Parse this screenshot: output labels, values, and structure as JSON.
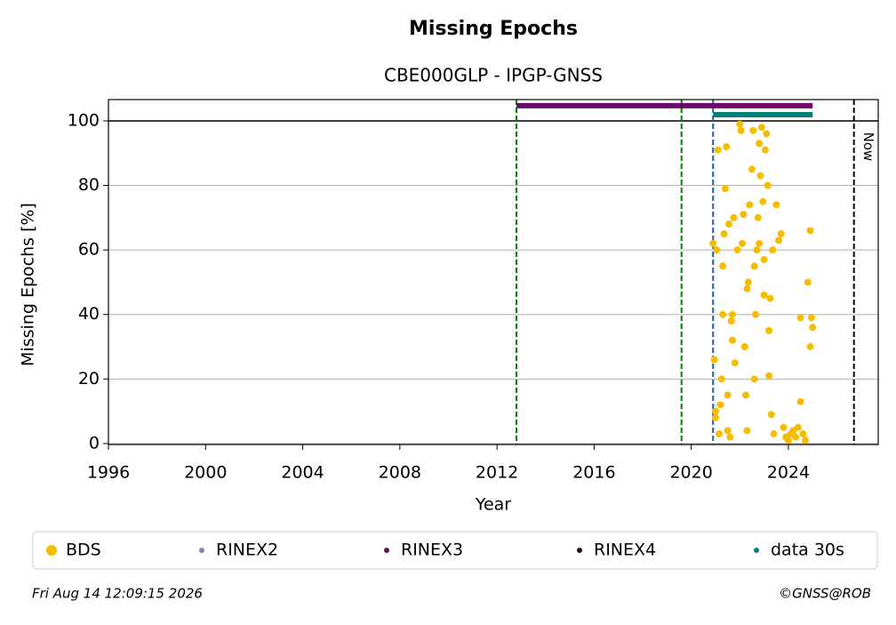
{
  "chart_data": {
    "type": "scatter",
    "title": "Missing Epochs",
    "subtitle": "CBE000GLP - IPGP-GNSS",
    "x_label": "Year",
    "y_label": "Missing Epochs [%]",
    "xlim": [
      1996,
      2027.7
    ],
    "xticks": [
      1996,
      2000,
      2004,
      2008,
      2012,
      2016,
      2020,
      2024
    ],
    "ylim": [
      -0.3,
      106.6
    ],
    "yticks": [
      0,
      20,
      40,
      60,
      80,
      100
    ],
    "grid": true,
    "reference_line": 100,
    "vlines": [
      {
        "x": 2012.8,
        "color": "#008000"
      },
      {
        "x": 2019.6,
        "color": "#008000"
      },
      {
        "x": 2020.9,
        "color": "#1f5fa8"
      },
      {
        "x": 2026.7,
        "color": "#000000"
      }
    ],
    "annotation": "Now",
    "annotation_x": 2026.7,
    "series": [
      {
        "name": "BDS",
        "color": "#f5bd00",
        "marker": "dot",
        "x": [
          2020.9,
          2020.95,
          2021.0,
          2021.05,
          2021.1,
          2021.15,
          2021.2,
          2021.25,
          2021.3,
          2021.35,
          2021.4,
          2021.45,
          2021.5,
          2021.55,
          2021.6,
          2021.65,
          2021.7,
          2021.75,
          2021.8,
          2021.9,
          2022.0,
          2022.05,
          2022.1,
          2022.15,
          2022.2,
          2022.25,
          2022.3,
          2022.35,
          2022.4,
          2022.5,
          2022.55,
          2022.6,
          2022.65,
          2022.7,
          2022.75,
          2022.8,
          2022.85,
          2022.9,
          2022.95,
          2023.0,
          2023.05,
          2023.1,
          2023.15,
          2023.2,
          2023.25,
          2023.3,
          2023.35,
          2023.4,
          2023.5,
          2023.6,
          2023.7,
          2023.8,
          2023.9,
          2024.0,
          2024.1,
          2024.2,
          2024.3,
          2024.4,
          2024.5,
          2024.6,
          2024.7,
          2024.8,
          2024.9,
          2024.95,
          2025.0,
          2021.0,
          2021.3,
          2021.5,
          2021.7,
          2022.3,
          2022.6,
          2022.8,
          2023.0,
          2023.2,
          2024.5,
          2024.9
        ],
        "values": [
          62,
          26,
          8,
          60,
          91,
          3,
          12,
          20,
          40,
          65,
          79,
          92,
          4,
          68,
          2,
          38,
          40,
          70,
          25,
          60,
          99,
          97,
          62,
          71,
          30,
          15,
          4,
          50,
          74,
          85,
          97,
          55,
          40,
          60,
          70,
          62,
          83,
          98,
          75,
          46,
          91,
          96,
          80,
          35,
          45,
          9,
          60,
          3,
          74,
          63,
          65,
          5,
          2,
          1,
          3,
          4,
          2,
          5,
          13,
          3,
          1,
          50,
          66,
          39,
          36,
          10,
          55,
          15,
          32,
          48,
          20,
          93,
          57,
          21,
          39,
          30
        ]
      },
      {
        "name": "RINEX2",
        "color": "#8080c0",
        "marker": "line",
        "x": [],
        "values": []
      },
      {
        "name": "RINEX3",
        "color": "#6a0a6a",
        "marker": "line",
        "x": [
          2012.8,
          2025.0
        ],
        "values": [
          104.7,
          104.7
        ]
      },
      {
        "name": "RINEX4",
        "color": "#2a0a20",
        "marker": "line",
        "x": [],
        "values": []
      },
      {
        "name": "data 30s",
        "color": "#008080",
        "marker": "line",
        "x": [
          2020.9,
          2025.0
        ],
        "values": [
          101.9,
          101.9
        ]
      }
    ],
    "timestamp": "Fri Aug 14 12:09:15 2026",
    "credit": "©GNSS@ROB"
  }
}
